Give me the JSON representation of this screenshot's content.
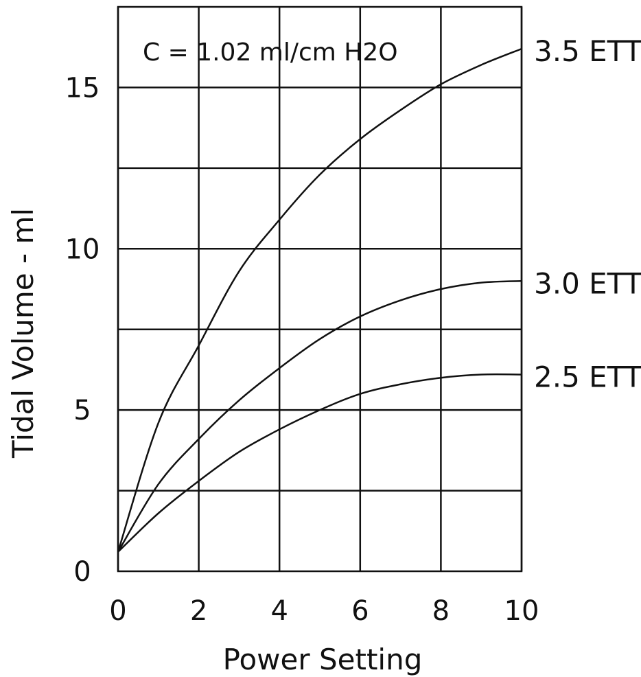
{
  "chart_data": {
    "type": "line",
    "title": "",
    "xlabel": "Power Setting",
    "ylabel": "Tidal Volume - ml",
    "annotation": "C = 1.02 ml/cm H2O",
    "xlim": [
      0,
      10
    ],
    "ylim": [
      0,
      17.5
    ],
    "x_ticks": [
      "0",
      "2",
      "4",
      "6",
      "8",
      "10"
    ],
    "y_ticks": [
      "0",
      "5",
      "10",
      "15"
    ],
    "grid": true,
    "grid_y_step": 2.5,
    "colors": {
      "line": "#111111",
      "grid": "#111111",
      "background": "#ffffff"
    },
    "x": [
      0,
      1,
      2,
      3,
      4,
      5,
      6,
      7,
      8,
      9,
      10
    ],
    "series": [
      {
        "name": "3.5 ETT",
        "values": [
          0.6,
          4.6,
          7.0,
          9.3,
          10.9,
          12.3,
          13.4,
          14.3,
          15.1,
          15.7,
          16.2
        ]
      },
      {
        "name": "3.0 ETT",
        "values": [
          0.6,
          2.7,
          4.1,
          5.3,
          6.3,
          7.2,
          7.9,
          8.4,
          8.75,
          8.95,
          9.0
        ]
      },
      {
        "name": "2.5 ETT",
        "values": [
          0.6,
          1.8,
          2.8,
          3.7,
          4.4,
          5.0,
          5.5,
          5.8,
          6.0,
          6.1,
          6.1
        ]
      }
    ]
  }
}
